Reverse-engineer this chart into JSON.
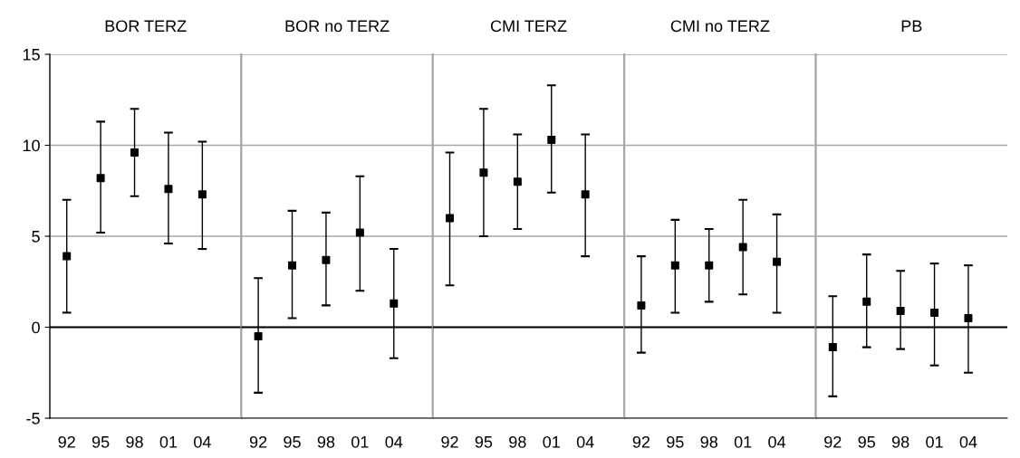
{
  "chart_data": [
    {
      "type": "scatter",
      "title": "BOR TERZ",
      "categories": [
        "92",
        "95",
        "98",
        "01",
        "04"
      ],
      "series": [
        {
          "color": "#000000",
          "values": [
            3.9,
            8.2,
            9.6,
            7.6,
            7.3
          ],
          "errors": [
            [
              0.8,
              7.0
            ],
            [
              5.2,
              11.3
            ],
            [
              7.2,
              12.0
            ],
            [
              4.6,
              10.7
            ],
            [
              4.3,
              10.2
            ]
          ]
        }
      ],
      "marker": "square",
      "ylim": [
        -5,
        15
      ],
      "yticks": [
        -5,
        0,
        5,
        10,
        15
      ],
      "grid": "y",
      "ref_lines": [
        {
          "axis": "y",
          "value": 0,
          "color": "#000000"
        }
      ]
    },
    {
      "type": "scatter",
      "title": "BOR no TERZ",
      "categories": [
        "92",
        "95",
        "98",
        "01",
        "04"
      ],
      "series": [
        {
          "color": "#000000",
          "values": [
            -0.5,
            3.4,
            3.7,
            5.2,
            1.3
          ],
          "errors": [
            [
              -3.6,
              2.7
            ],
            [
              0.5,
              6.4
            ],
            [
              1.2,
              6.3
            ],
            [
              2.0,
              8.3
            ],
            [
              -1.7,
              4.3
            ]
          ]
        }
      ],
      "marker": "square",
      "ylim": [
        -5,
        15
      ],
      "yticks": [
        -5,
        0,
        5,
        10,
        15
      ],
      "tick_labels": "x",
      "grid": "y",
      "ref_lines": [
        {
          "axis": "y",
          "value": 0,
          "color": "#000000"
        }
      ]
    },
    {
      "type": "scatter",
      "title": "CMI TERZ",
      "categories": [
        "92",
        "95",
        "98",
        "01",
        "04"
      ],
      "series": [
        {
          "color": "#000000",
          "values": [
            6.0,
            8.5,
            8.0,
            10.3,
            7.3
          ],
          "errors": [
            [
              2.3,
              9.6
            ],
            [
              5.0,
              12.0
            ],
            [
              5.4,
              10.6
            ],
            [
              7.4,
              13.3
            ],
            [
              3.9,
              10.6
            ]
          ]
        }
      ],
      "marker": "square",
      "ylim": [
        -5,
        15
      ],
      "yticks": [
        -5,
        0,
        5,
        10,
        15
      ],
      "tick_labels": "x",
      "grid": "y",
      "ref_lines": [
        {
          "axis": "y",
          "value": 0,
          "color": "#000000"
        }
      ]
    },
    {
      "type": "scatter",
      "title": "CMI no TERZ",
      "categories": [
        "92",
        "95",
        "98",
        "01",
        "04"
      ],
      "series": [
        {
          "color": "#000000",
          "values": [
            1.2,
            3.4,
            3.4,
            4.4,
            3.6
          ],
          "errors": [
            [
              -1.4,
              3.9
            ],
            [
              0.8,
              5.9
            ],
            [
              1.4,
              5.4
            ],
            [
              1.8,
              7.0
            ],
            [
              0.8,
              6.2
            ]
          ]
        }
      ],
      "marker": "square",
      "ylim": [
        -5,
        15
      ],
      "yticks": [
        -5,
        0,
        5,
        10,
        15
      ],
      "tick_labels": "x",
      "grid": "y",
      "ref_lines": [
        {
          "axis": "y",
          "value": 0,
          "color": "#000000"
        }
      ]
    },
    {
      "type": "scatter",
      "title": "PB",
      "categories": [
        "92",
        "95",
        "98",
        "01",
        "04"
      ],
      "series": [
        {
          "color": "#000000",
          "values": [
            -1.1,
            1.4,
            0.9,
            0.8,
            0.5
          ],
          "errors": [
            [
              -3.8,
              1.7
            ],
            [
              -1.1,
              4.0
            ],
            [
              -1.2,
              3.1
            ],
            [
              -2.1,
              3.5
            ],
            [
              -2.5,
              3.4
            ]
          ]
        }
      ],
      "marker": "square",
      "ylim": [
        -5,
        15
      ],
      "yticks": [
        -5,
        0,
        5,
        10,
        15
      ],
      "tick_labels": "x",
      "grid": "y",
      "ref_lines": [
        {
          "axis": "y",
          "value": 0,
          "color": "#000000"
        }
      ]
    }
  ]
}
